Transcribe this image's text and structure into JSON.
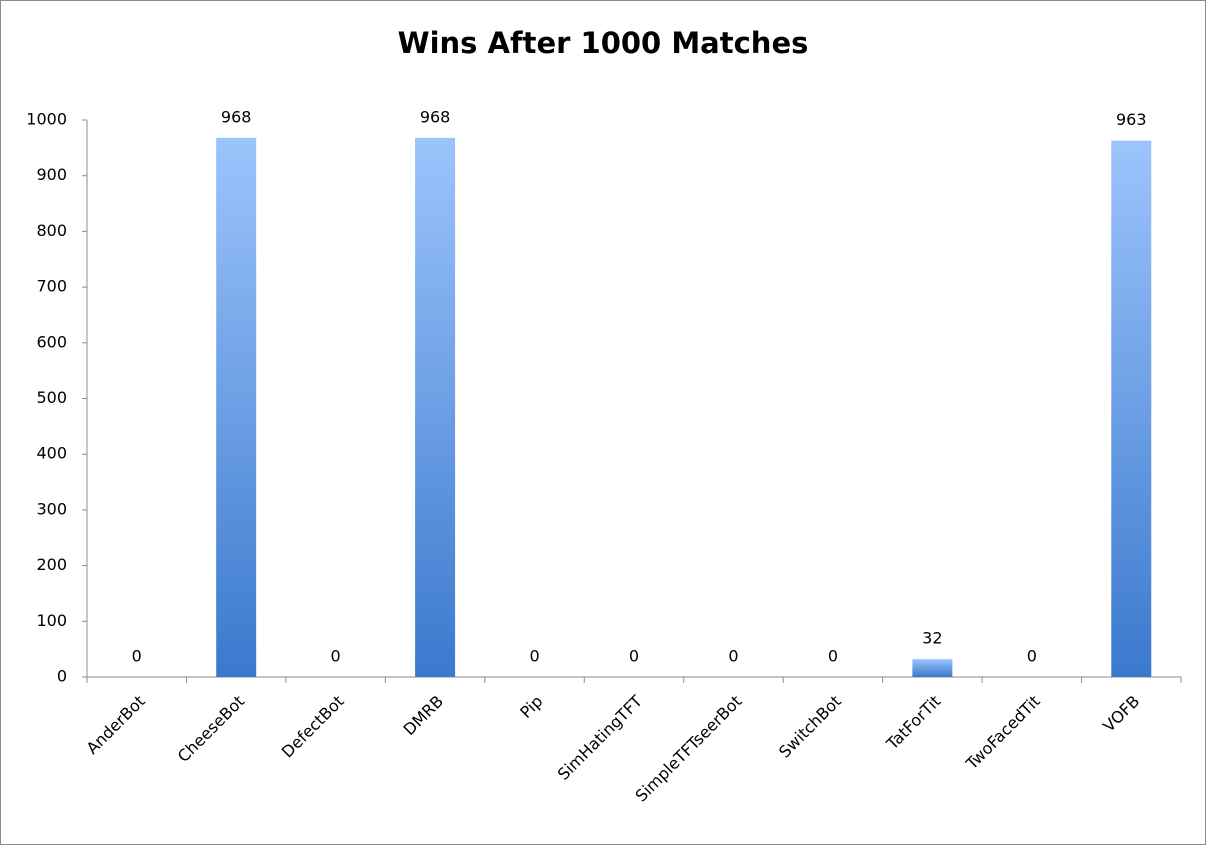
{
  "chart_data": {
    "type": "bar",
    "title": "Wins After 1000 Matches",
    "categories": [
      "AnderBot",
      "CheeseBot",
      "DefectBot",
      "DMRB",
      "Pip",
      "SimHatingTFT",
      "SimpleTFTseerBot",
      "SwitchBot",
      "TatForTit",
      "TwoFacedTit",
      "VOFB"
    ],
    "values": [
      0,
      968,
      0,
      968,
      0,
      0,
      0,
      0,
      32,
      0,
      963
    ],
    "gradient": [
      "#9cc4fc",
      "#3b79cd"
    ],
    "ylim": [
      0,
      1000
    ],
    "yticks": [
      0,
      100,
      200,
      300,
      400,
      500,
      600,
      700,
      800,
      900,
      1000
    ],
    "grid": false
  }
}
